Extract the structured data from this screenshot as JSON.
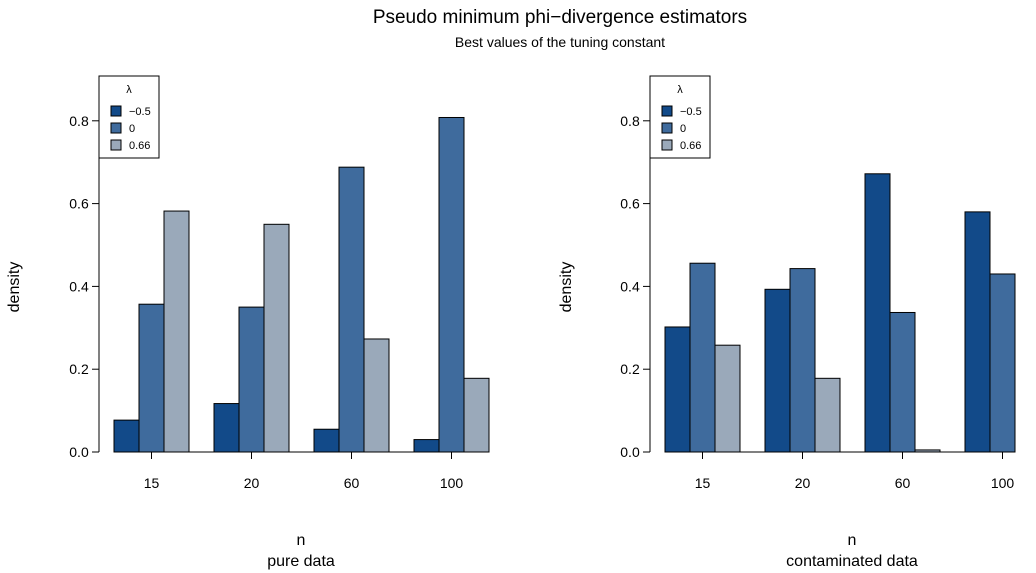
{
  "title": "Pseudo minimum phi−divergence estimators",
  "subtitle": "Best values of the tuning constant",
  "legend_title": "λ",
  "legend_labels": [
    "−0.5",
    "0",
    "0.66"
  ],
  "series_colors": [
    "#124A89",
    "#3F6B9D",
    "#9AA9BA"
  ],
  "chart_data": [
    {
      "type": "bar",
      "categories": [
        "15",
        "20",
        "60",
        "100"
      ],
      "series": [
        {
          "name": "−0.5",
          "values": [
            0.077,
            0.117,
            0.055,
            0.03
          ]
        },
        {
          "name": "0",
          "values": [
            0.357,
            0.35,
            0.688,
            0.808
          ]
        },
        {
          "name": "0.66",
          "values": [
            0.582,
            0.55,
            0.273,
            0.178
          ]
        }
      ],
      "xlabel": "n",
      "sublabel": "pure data",
      "ylabel": "density",
      "ylim": [
        0,
        0.9
      ],
      "yticks": [
        "0.0",
        "0.2",
        "0.4",
        "0.6",
        "0.8"
      ],
      "legend_position": "top-left",
      "grid": false
    },
    {
      "type": "bar",
      "categories": [
        "15",
        "20",
        "60",
        "100"
      ],
      "series": [
        {
          "name": "−0.5",
          "values": [
            0.302,
            0.393,
            0.672,
            0.58
          ]
        },
        {
          "name": "0",
          "values": [
            0.456,
            0.443,
            0.337,
            0.43
          ]
        },
        {
          "name": "0.66",
          "values": [
            0.258,
            0.178,
            0.005,
            0.0
          ]
        }
      ],
      "xlabel": "n",
      "sublabel": "contaminated data",
      "ylabel": "density",
      "ylim": [
        0,
        0.9
      ],
      "yticks": [
        "0.0",
        "0.2",
        "0.4",
        "0.6",
        "0.8"
      ],
      "legend_position": "top-left",
      "grid": false
    }
  ]
}
